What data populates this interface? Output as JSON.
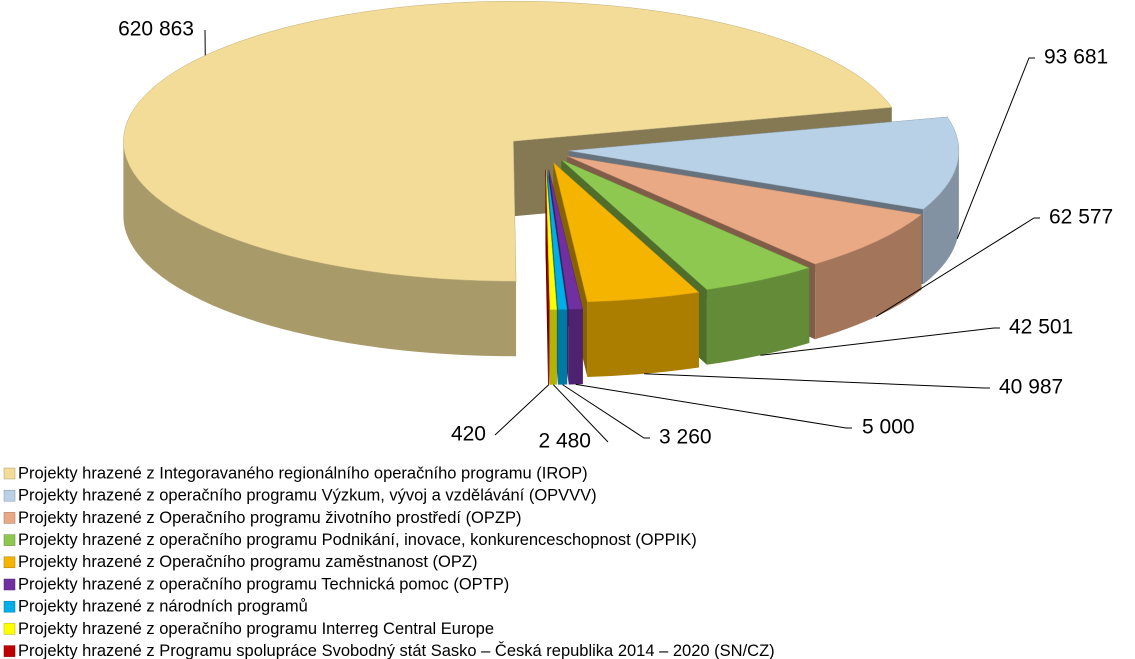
{
  "chart_data": {
    "type": "pie",
    "categories": [
      "Projekty hrazené z Integoravaného regionálního operačního programu (IROP)",
      "Projekty hrazené z operačního programu Výzkum, vývoj a vzdělávání (OPVVV)",
      "Projekty hrazené z Operačního programu životního prostředí (OPZP)",
      "Projekty hrazené z operačního programu Podnikání, inovace, konkurenceschopnost (OPPIK)",
      "Projekty hrazené z Operačního programu zaměstnanost (OPZ)",
      "Projekty hrazené z operačního programu Technická pomoc (OPTP)",
      "Projekty hrazené z národních programů",
      "Projekty hrazené z operačního programu Interreg Central Europe",
      "Projekty hrazené z Programu spolupráce Svobodný stát Sasko – Česká republika 2014 – 2020 (SN/CZ)"
    ],
    "values": [
      620863,
      93681,
      62577,
      42501,
      40987,
      5000,
      3260,
      2480,
      420
    ],
    "value_labels": [
      "620 863",
      "93 681",
      "62 577",
      "42 501",
      "40 987",
      "5 000",
      "3 260",
      "2 480",
      "420"
    ],
    "colors": [
      "#f2dc98",
      "#b9d1e7",
      "#e9a984",
      "#8fc850",
      "#f4b400",
      "#7030a0",
      "#00aee8",
      "#ffff00",
      "#c00000"
    ],
    "legend": "bottom"
  }
}
